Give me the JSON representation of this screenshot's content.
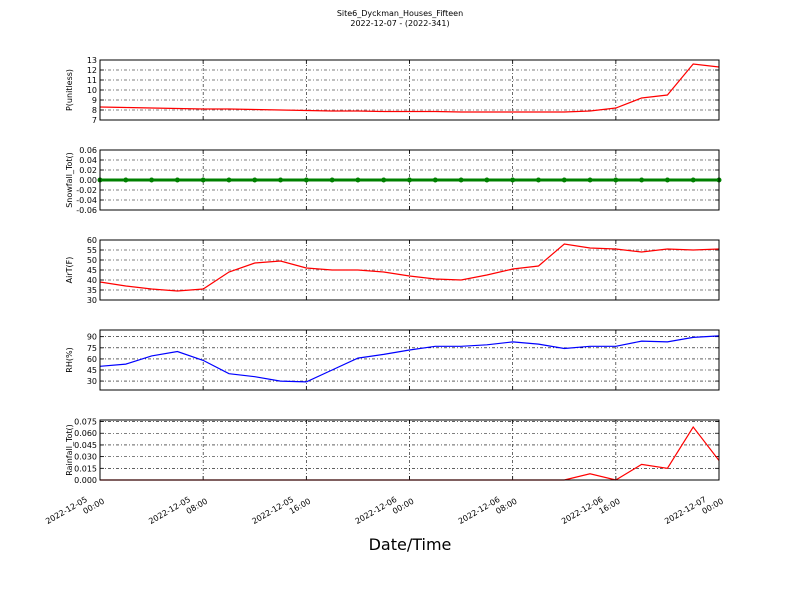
{
  "title": "Site6_Dyckman_Houses_Fifteen",
  "subtitle": "2022-12-07 - (2022-341)",
  "x_axis": {
    "label": "Date/Time",
    "x": [
      "2022-12-05 00:00",
      "2022-12-05 02:00",
      "2022-12-05 04:00",
      "2022-12-05 06:00",
      "2022-12-05 08:00",
      "2022-12-05 10:00",
      "2022-12-05 12:00",
      "2022-12-05 14:00",
      "2022-12-05 16:00",
      "2022-12-05 18:00",
      "2022-12-05 20:00",
      "2022-12-05 22:00",
      "2022-12-06 00:00",
      "2022-12-06 02:00",
      "2022-12-06 04:00",
      "2022-12-06 06:00",
      "2022-12-06 08:00",
      "2022-12-06 10:00",
      "2022-12-06 12:00",
      "2022-12-06 14:00",
      "2022-12-06 16:00",
      "2022-12-06 18:00",
      "2022-12-06 20:00",
      "2022-12-06 22:00",
      "2022-12-07 00:00"
    ],
    "xlim": [
      "2022-12-05 00:00",
      "2022-12-07 00:00"
    ],
    "xticks": [
      "2022-12-05 00:00",
      "2022-12-05 08:00",
      "2022-12-05 16:00",
      "2022-12-06 00:00",
      "2022-12-06 08:00",
      "2022-12-06 16:00",
      "2022-12-07 00:00"
    ]
  },
  "chart_data": [
    {
      "type": "line",
      "y_label": "P(unitless)",
      "grid": true,
      "series": [
        {
          "color": "#ff0000",
          "values": [
            8.3,
            8.25,
            8.2,
            8.15,
            8.1,
            8.1,
            8.05,
            8.0,
            7.95,
            7.9,
            7.9,
            7.85,
            7.85,
            7.85,
            7.8,
            7.8,
            7.8,
            7.8,
            7.8,
            7.9,
            8.2,
            9.2,
            9.5,
            12.6,
            12.3
          ]
        }
      ],
      "ylim": [
        7,
        13
      ],
      "yticks": [
        7,
        8,
        9,
        10,
        11,
        12,
        13
      ]
    },
    {
      "type": "line",
      "y_label": "Snowfall_Tot()",
      "grid": true,
      "markers": true,
      "series": [
        {
          "color": "#008000",
          "values": [
            0,
            0,
            0,
            0,
            0,
            0,
            0,
            0,
            0,
            0,
            0,
            0,
            0,
            0,
            0,
            0,
            0,
            0,
            0,
            0,
            0,
            0,
            0,
            0,
            0
          ]
        }
      ],
      "ylim": [
        -0.06,
        0.06
      ],
      "yticks": [
        -0.06,
        -0.04,
        -0.02,
        {
          "value": 0,
          "label": "0.00"
        },
        0.02,
        0.04,
        0.06
      ]
    },
    {
      "type": "line",
      "y_label": "AirT(F)",
      "grid": true,
      "series": [
        {
          "color": "#ff0000",
          "values": [
            39,
            37,
            35.5,
            34.5,
            35.5,
            44,
            48.5,
            49.5,
            46,
            45,
            45,
            44,
            42,
            40.5,
            40,
            42.5,
            45.5,
            47,
            58,
            56,
            55.5,
            54,
            55.5,
            55,
            55.5
          ]
        }
      ],
      "ylim": [
        30,
        60
      ],
      "yticks": [
        30,
        35,
        40,
        45,
        50,
        55,
        60
      ]
    },
    {
      "type": "line",
      "y_label": "RH(%)",
      "grid": true,
      "series": [
        {
          "color": "#0000ff",
          "values": [
            50,
            53,
            64,
            70,
            58,
            40,
            36,
            30,
            29,
            45,
            61,
            66,
            72,
            77,
            77,
            79,
            83,
            80,
            74,
            77,
            77,
            84,
            83,
            89,
            91
          ]
        }
      ],
      "ylim": [
        18,
        99
      ],
      "yticks": [
        30,
        45,
        60,
        75,
        90
      ]
    },
    {
      "type": "line",
      "y_label": "Rainfall_Tot()",
      "grid": true,
      "series": [
        {
          "color": "#ff0000",
          "values": [
            0,
            0,
            0,
            0,
            0,
            0,
            0,
            0,
            0,
            0,
            0,
            0,
            0,
            0,
            0,
            0,
            0,
            0,
            0,
            0.008,
            0,
            0.02,
            0.015,
            0.068,
            0.025
          ]
        }
      ],
      "ylim": [
        0,
        0.077
      ],
      "yticks": [
        {
          "value": 0,
          "label": "0.000"
        },
        0.015,
        {
          "value": 0.03,
          "label": "0.030"
        },
        0.045,
        {
          "value": 0.06,
          "label": "0.060"
        },
        0.075
      ]
    }
  ]
}
